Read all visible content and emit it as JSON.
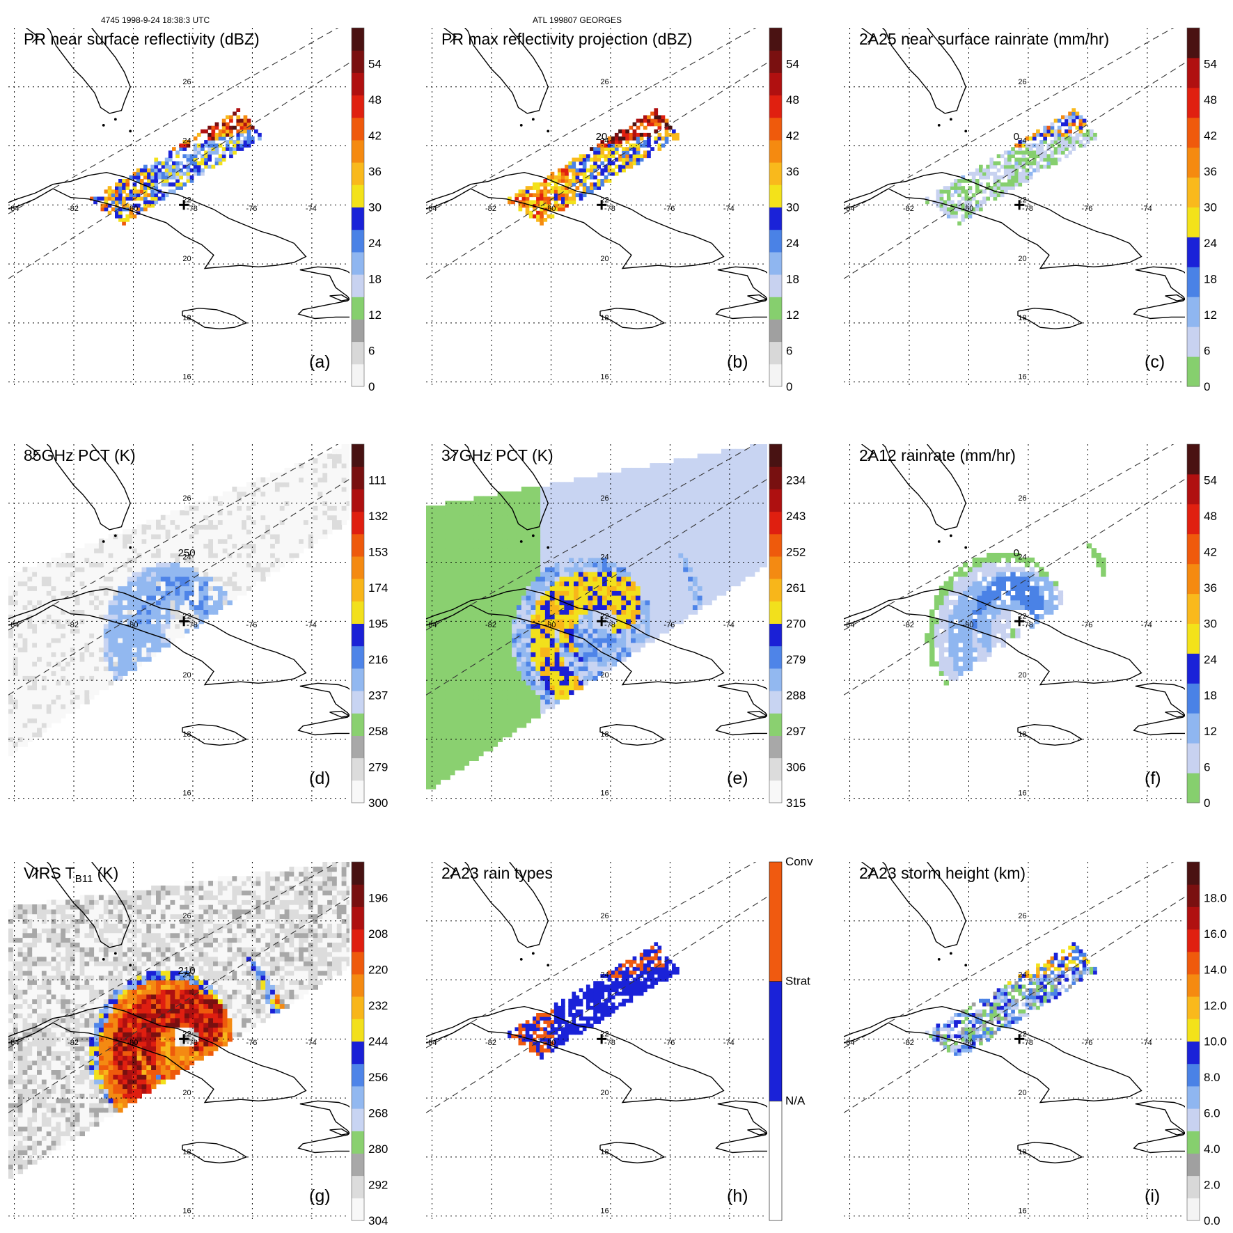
{
  "header": {
    "orbit_time": "4745 1998-9-24 18:38:3 UTC",
    "storm": "ATL 199807 GEORGES"
  },
  "map": {
    "lon_labels": [
      "-84",
      "-82",
      "-80",
      "-78",
      "-76",
      "-74"
    ],
    "lat_labels": [
      "26",
      "24",
      "22",
      "20",
      "18",
      "16"
    ],
    "storm_center": {
      "lon": -78.3,
      "lat": 22.0
    }
  },
  "palettes": {
    "dbz": [
      "#f4f4f4",
      "#d8d8d8",
      "#a0a0a0",
      "#86cf6e",
      "#c8d2f0",
      "#8fb6f0",
      "#4a82e6",
      "#1a22d8",
      "#f3e21a",
      "#f9b91c",
      "#f58a10",
      "#ef5a0c",
      "#e02010",
      "#b01010",
      "#7a1010",
      "#4a1212"
    ],
    "gray_green_blue": [
      "#f8f8f8",
      "#dcdcdc",
      "#a8a8a8",
      "#8ad070",
      "#c8d4f2",
      "#92b8f0",
      "#4e84e8",
      "#1a20d6",
      "#f2e01c",
      "#f8b61a",
      "#f48a12",
      "#ee5a0c",
      "#df1f10",
      "#ae1010",
      "#781010",
      "#481212"
    ],
    "rain": [
      "#86cf6e",
      "#c8d2f0",
      "#8fb6f0",
      "#4a82e6",
      "#1a22d8",
      "#f3e21a",
      "#f9b91c",
      "#f58a10",
      "#ef5a0c",
      "#e02010",
      "#b01010",
      "#4a1212"
    ],
    "raintype": [
      "#ffffff",
      "#1a22d8",
      "#f05a10"
    ]
  },
  "panels": [
    {
      "id": "a",
      "title": "PR near surface reflectivity (dBZ)",
      "letter": "(a)",
      "palette": "dbz",
      "ticks": [
        "0",
        "6",
        "12",
        "18",
        "24",
        "30",
        "36",
        "42",
        "48",
        "54"
      ],
      "field": "pr_swath",
      "fill_style": "dbz"
    },
    {
      "id": "b",
      "title": "PR max reflectivity projection (dBZ)",
      "letter": "(b)",
      "palette": "dbz",
      "ticks": [
        "0",
        "6",
        "12",
        "18",
        "24",
        "30",
        "36",
        "42",
        "48",
        "54"
      ],
      "field": "pr_swath",
      "fill_style": "dbz_max",
      "contour": "20"
    },
    {
      "id": "c",
      "title": "2A25 near surface rainrate (mm/hr)",
      "letter": "(c)",
      "palette": "rain",
      "ticks": [
        "0",
        "6",
        "12",
        "18",
        "24",
        "30",
        "36",
        "42",
        "48",
        "54"
      ],
      "field": "pr_swath",
      "fill_style": "rain",
      "contour": "0"
    },
    {
      "id": "d",
      "title": "85GHz PCT (K)",
      "letter": "(d)",
      "palette": "gray_green_blue",
      "ticks": [
        "300",
        "279",
        "258",
        "237",
        "216",
        "195",
        "174",
        "153",
        "132",
        "111"
      ],
      "field": "tmi",
      "fill_style": "pct85",
      "contour": "250"
    },
    {
      "id": "e",
      "title": "37GHz PCT (K)",
      "letter": "(e)",
      "palette": "gray_green_blue",
      "ticks": [
        "315",
        "306",
        "297",
        "288",
        "279",
        "270",
        "261",
        "252",
        "243",
        "234"
      ],
      "field": "tmi",
      "fill_style": "pct37"
    },
    {
      "id": "f",
      "title": "2A12 rainrate (mm/hr)",
      "letter": "(f)",
      "palette": "rain",
      "ticks": [
        "0",
        "6",
        "12",
        "18",
        "24",
        "30",
        "36",
        "42",
        "48",
        "54"
      ],
      "field": "tmi",
      "fill_style": "rain12",
      "contour": "0"
    },
    {
      "id": "g",
      "title_main": "VIRS T",
      "title_sub": "B11",
      "title_end": " (K)",
      "letter": "(g)",
      "palette": "gray_green_blue",
      "ticks": [
        "304",
        "292",
        "280",
        "268",
        "256",
        "244",
        "232",
        "220",
        "208",
        "196"
      ],
      "field": "virs",
      "fill_style": "virs",
      "contour": "210"
    },
    {
      "id": "h",
      "title": "2A23 rain types",
      "letter": "(h)",
      "palette": "raintype",
      "ticks": [
        "N/A",
        "Strat",
        "Conv"
      ],
      "field": "pr_swath",
      "fill_style": "raintype"
    },
    {
      "id": "i",
      "title": "2A23 storm height (km)",
      "letter": "(i)",
      "palette": "dbz",
      "ticks": [
        "0.0",
        "2.0",
        "4.0",
        "6.0",
        "8.0",
        "10.0",
        "12.0",
        "14.0",
        "16.0",
        "18.0"
      ],
      "field": "pr_swath",
      "fill_style": "height"
    }
  ]
}
